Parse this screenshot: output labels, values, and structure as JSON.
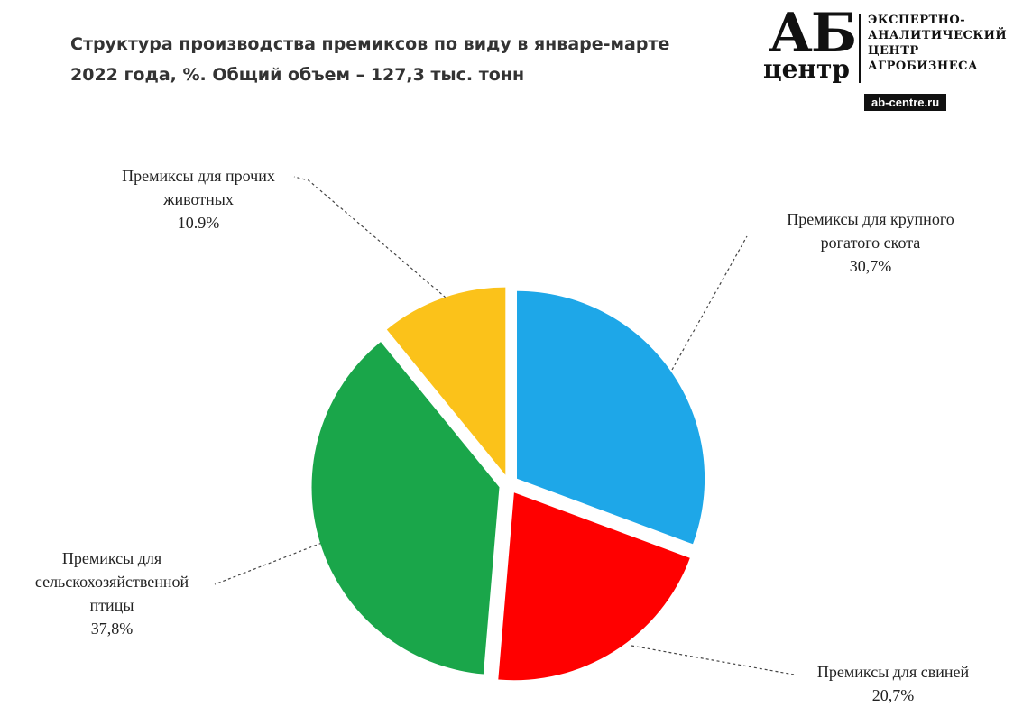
{
  "title_lines": [
    "Структура  производства  премиксов по виду в январе-марте",
    "2022 года,  %. Общий объем – 127,3 тыс. тонн"
  ],
  "logo": {
    "ab": "АБ",
    "centr": "центр",
    "org_lines": [
      "ЭКСПЕРТНО-",
      "АНАЛИТИЧЕСКИЙ",
      "ЦЕНТР",
      "АГРОБИЗНЕСА"
    ],
    "site": "ab-centre.ru"
  },
  "chart_data": {
    "type": "pie",
    "title": "Структура производства премиксов по виду в январе-марте 2022 года, %. Общий объем – 127,3 тыс. тонн",
    "slices": [
      {
        "label_lines": [
          "Премиксы для крупного",
          "рогатого скота"
        ],
        "value_label": "30,7%",
        "value": 30.7,
        "color": "#1ea7e8"
      },
      {
        "label_lines": [
          "Премиксы для свиней"
        ],
        "value_label": "20,7%",
        "value": 20.7,
        "color": "#ff0000"
      },
      {
        "label_lines": [
          "Премиксы для",
          "сельскохозяйственной",
          "птицы"
        ],
        "value_label": "37,8%",
        "value": 37.8,
        "color": "#1aa64a"
      },
      {
        "label_lines": [
          "Премиксы для прочих",
          "животных"
        ],
        "value_label": "10.9%",
        "value": 10.9,
        "color": "#fbc21a"
      }
    ]
  }
}
